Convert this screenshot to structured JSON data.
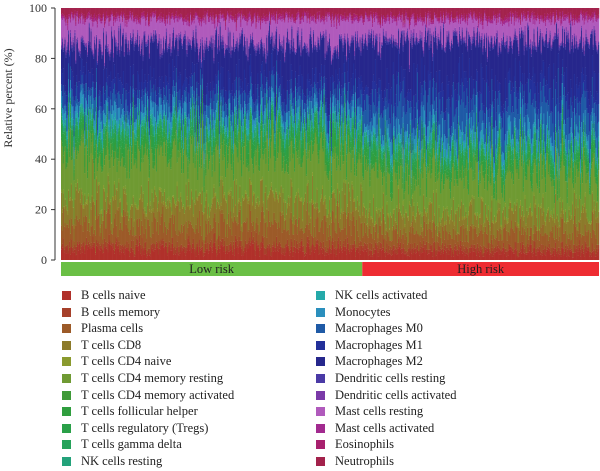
{
  "chart_data": {
    "type": "stacked-bar",
    "ylabel": "Relative percent (%)",
    "ylim": [
      0,
      100
    ],
    "yticks": [
      0,
      20,
      40,
      60,
      80,
      100
    ],
    "n_samples": 600,
    "groups": [
      {
        "label": "Low risk",
        "color": "#6abf45",
        "fraction": 0.56
      },
      {
        "label": "High risk",
        "color": "#ee2c32",
        "fraction": 0.44
      }
    ],
    "series": [
      {
        "name": "B cells naive",
        "color": "#b0302a",
        "low_risk_mean": 4,
        "high_risk_mean": 3
      },
      {
        "name": "B cells memory",
        "color": "#a6402a",
        "low_risk_mean": 2,
        "high_risk_mean": 2
      },
      {
        "name": "Plasma cells",
        "color": "#9c5a28",
        "low_risk_mean": 8,
        "high_risk_mean": 6
      },
      {
        "name": "T cells CD8",
        "color": "#8c7a2a",
        "low_risk_mean": 9,
        "high_risk_mean": 7
      },
      {
        "name": "T cells CD4 naive",
        "color": "#8a9a2e",
        "low_risk_mean": 1,
        "high_risk_mean": 1
      },
      {
        "name": "T cells CD4 memory resting",
        "color": "#6f9a33",
        "low_risk_mean": 18,
        "high_risk_mean": 15
      },
      {
        "name": "T cells CD4 memory activated",
        "color": "#3f9a38",
        "low_risk_mean": 2,
        "high_risk_mean": 2
      },
      {
        "name": "T cells follicular helper",
        "color": "#2f9e3e",
        "low_risk_mean": 4,
        "high_risk_mean": 3
      },
      {
        "name": "T cells regulatory (Tregs)",
        "color": "#2aa048",
        "low_risk_mean": 3,
        "high_risk_mean": 3
      },
      {
        "name": "T cells gamma delta",
        "color": "#26a25a",
        "low_risk_mean": 1,
        "high_risk_mean": 1
      },
      {
        "name": "NK cells resting",
        "color": "#23a27a",
        "low_risk_mean": 2,
        "high_risk_mean": 2
      },
      {
        "name": "NK cells activated",
        "color": "#25a9a9",
        "low_risk_mean": 2,
        "high_risk_mean": 2
      },
      {
        "name": "Monocytes",
        "color": "#2a8fbd",
        "low_risk_mean": 4,
        "high_risk_mean": 4
      },
      {
        "name": "Macrophages M0",
        "color": "#1f5aa6",
        "low_risk_mean": 5,
        "high_risk_mean": 10
      },
      {
        "name": "Macrophages M1",
        "color": "#23309a",
        "low_risk_mean": 6,
        "high_risk_mean": 8
      },
      {
        "name": "Macrophages M2",
        "color": "#26278c",
        "low_risk_mean": 14,
        "high_risk_mean": 17
      },
      {
        "name": "Dendritic cells resting",
        "color": "#4a3aa6",
        "low_risk_mean": 1,
        "high_risk_mean": 1
      },
      {
        "name": "Dendritic cells activated",
        "color": "#7a3aa8",
        "low_risk_mean": 1,
        "high_risk_mean": 1
      },
      {
        "name": "Mast cells resting",
        "color": "#b05abc",
        "low_risk_mean": 8,
        "high_risk_mean": 7
      },
      {
        "name": "Mast cells activated",
        "color": "#a22a8f",
        "low_risk_mean": 1,
        "high_risk_mean": 1
      },
      {
        "name": "Eosinophils",
        "color": "#a8206e",
        "low_risk_mean": 1,
        "high_risk_mean": 1
      },
      {
        "name": "Neutrophils",
        "color": "#a3224c",
        "low_risk_mean": 3,
        "high_risk_mean": 3
      }
    ]
  }
}
